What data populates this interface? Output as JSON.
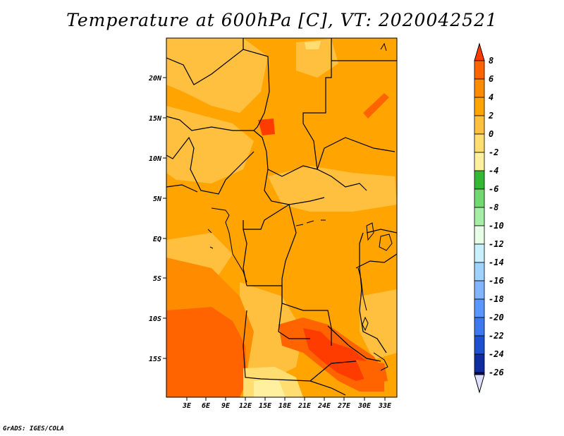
{
  "title": "Temperature at 600hPa [C], VT: 2020042521",
  "credit": "GrADS: IGES/COLA",
  "map": {
    "lat_labels": [
      "20N",
      "15N",
      "10N",
      "5N",
      "EQ",
      "5S",
      "10S",
      "15S"
    ],
    "lon_labels": [
      "3E",
      "6E",
      "9E",
      "12E",
      "15E",
      "18E",
      "21E",
      "24E",
      "27E",
      "30E",
      "33E"
    ],
    "fill_colors": {
      "dominant": "#FFA400",
      "warm_light": "#FFC040",
      "warm_mid": "#FF8C00",
      "hot": "#FF6400",
      "hottest": "#FF3C00",
      "cool": "#FFDD70",
      "coolest": "#FFF0A0"
    }
  },
  "colorbar": {
    "labels": [
      "8",
      "6",
      "4",
      "2",
      "0",
      "-2",
      "-4",
      "-6",
      "-8",
      "-10",
      "-12",
      "-14",
      "-16",
      "-18",
      "-20",
      "-22",
      "-24",
      "-26"
    ],
    "colors": [
      "#FF3C00",
      "#FF6400",
      "#FF8C00",
      "#FFA400",
      "#FFC040",
      "#FFDD70",
      "#FFF0A0",
      "#35B935",
      "#72D872",
      "#A6EDA6",
      "#E6FFE6",
      "#C8F0FF",
      "#A0D2FF",
      "#82B4FF",
      "#5A96FF",
      "#3C78F0",
      "#1E50D2",
      "#0F2DA0",
      "#0A0A64",
      "#E0E0FF"
    ]
  }
}
